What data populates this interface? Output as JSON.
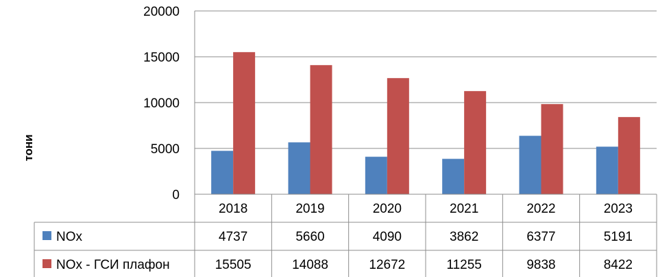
{
  "chart_data": {
    "type": "bar",
    "categories": [
      "2018",
      "2019",
      "2020",
      "2021",
      "2022",
      "2023"
    ],
    "series": [
      {
        "name": "NOx",
        "color": "#4F81BD",
        "values": [
          4737,
          5660,
          4090,
          3862,
          6377,
          5191
        ]
      },
      {
        "name": "NOx - ГСИ плафон",
        "color": "#C0504D",
        "values": [
          15505,
          14088,
          12672,
          11255,
          9838,
          8422
        ]
      }
    ],
    "ylabel": "тони",
    "ylim": [
      0,
      20000
    ],
    "yticks": [
      0,
      5000,
      10000,
      15000,
      20000
    ],
    "title": "",
    "xlabel": "",
    "grid": true,
    "legend": "data table below chart"
  }
}
